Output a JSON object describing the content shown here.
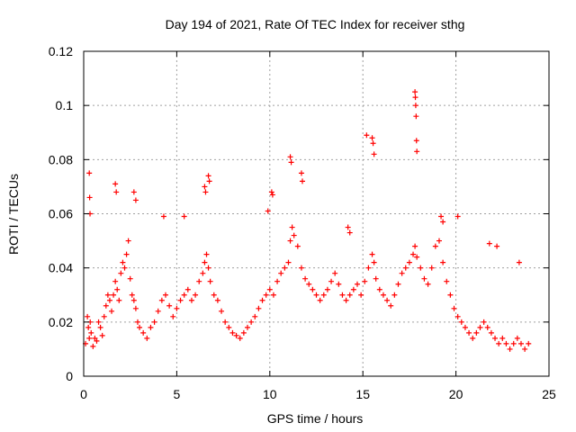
{
  "chart_data": {
    "type": "scatter",
    "title": "Day 194 of 2021, Rate Of TEC Index for receiver sthg",
    "xlabel": "GPS time / hours",
    "ylabel": "ROTI / TECUs",
    "xlim": [
      0,
      25
    ],
    "ylim": [
      0,
      0.12
    ],
    "xticks": [
      0,
      5,
      10,
      15,
      20,
      25
    ],
    "xtick_labels": [
      "0",
      "5",
      "10",
      "15",
      "20",
      "25"
    ],
    "yticks": [
      0,
      0.02,
      0.04,
      0.06,
      0.08,
      0.1,
      0.12
    ],
    "ytick_labels": [
      "0",
      "0.02",
      "0.04",
      "0.06",
      "0.08",
      "0.1",
      "0.12"
    ],
    "grid": true,
    "marker": "+",
    "series": [
      {
        "name": "ROTI",
        "color": "#ff0000",
        "x": [
          0.1,
          0.2,
          0.25,
          0.3,
          0.35,
          0.4,
          0.5,
          0.6,
          0.7,
          0.8,
          0.9,
          1.0,
          1.1,
          1.2,
          1.3,
          1.4,
          1.5,
          1.6,
          1.7,
          1.8,
          1.9,
          2.0,
          2.1,
          2.2,
          2.3,
          2.4,
          2.5,
          2.6,
          2.7,
          2.8,
          2.9,
          3.0,
          3.2,
          3.4,
          3.6,
          3.8,
          4.0,
          4.2,
          4.4,
          4.6,
          4.8,
          5.0,
          5.2,
          5.4,
          5.6,
          5.8,
          6.0,
          6.2,
          6.4,
          6.5,
          6.6,
          6.7,
          6.8,
          7.0,
          7.2,
          7.4,
          7.6,
          7.8,
          8.0,
          8.2,
          8.4,
          8.6,
          8.8,
          9.0,
          9.2,
          9.4,
          9.6,
          9.8,
          10.0,
          10.2,
          10.4,
          10.6,
          10.8,
          11.0,
          11.1,
          11.2,
          11.3,
          11.5,
          11.7,
          11.9,
          12.1,
          12.3,
          12.5,
          12.7,
          12.9,
          13.1,
          13.3,
          13.5,
          13.7,
          13.9,
          14.1,
          14.3,
          14.5,
          14.7,
          14.9,
          15.1,
          15.3,
          15.5,
          15.6,
          15.7,
          15.9,
          16.1,
          16.3,
          16.5,
          16.7,
          16.9,
          17.1,
          17.3,
          17.5,
          17.7,
          17.8,
          17.9,
          18.1,
          18.3,
          18.5,
          18.7,
          18.9,
          19.1,
          19.3,
          19.5,
          19.7,
          19.9,
          20.1,
          20.3,
          20.5,
          20.7,
          20.9,
          21.1,
          21.3,
          21.5,
          21.7,
          21.9,
          22.1,
          22.3,
          22.5,
          22.7,
          22.9,
          23.1,
          23.3,
          23.5,
          23.7,
          23.9,
          0.3,
          0.32,
          0.34,
          1.7,
          1.75,
          2.7,
          2.8,
          4.3,
          5.4,
          6.5,
          6.55,
          6.7,
          6.75,
          9.9,
          10.1,
          10.15,
          11.1,
          11.15,
          11.7,
          11.75,
          14.2,
          14.3,
          15.2,
          15.5,
          15.55,
          15.6,
          17.8,
          17.82,
          17.84,
          17.86,
          17.88,
          17.9,
          19.2,
          19.3,
          20.1,
          21.8,
          22.2,
          23.4
        ],
        "y": [
          0.012,
          0.022,
          0.018,
          0.014,
          0.02,
          0.016,
          0.011,
          0.014,
          0.013,
          0.02,
          0.018,
          0.015,
          0.022,
          0.026,
          0.03,
          0.028,
          0.024,
          0.03,
          0.035,
          0.032,
          0.028,
          0.038,
          0.042,
          0.04,
          0.045,
          0.05,
          0.036,
          0.03,
          0.028,
          0.025,
          0.02,
          0.018,
          0.016,
          0.014,
          0.018,
          0.02,
          0.024,
          0.028,
          0.03,
          0.026,
          0.022,
          0.025,
          0.028,
          0.03,
          0.032,
          0.028,
          0.03,
          0.035,
          0.038,
          0.042,
          0.045,
          0.04,
          0.035,
          0.03,
          0.028,
          0.024,
          0.02,
          0.018,
          0.016,
          0.015,
          0.014,
          0.016,
          0.018,
          0.02,
          0.022,
          0.025,
          0.028,
          0.03,
          0.032,
          0.03,
          0.035,
          0.038,
          0.04,
          0.042,
          0.05,
          0.055,
          0.052,
          0.048,
          0.04,
          0.036,
          0.034,
          0.032,
          0.03,
          0.028,
          0.03,
          0.032,
          0.035,
          0.038,
          0.034,
          0.03,
          0.028,
          0.03,
          0.032,
          0.034,
          0.03,
          0.035,
          0.04,
          0.045,
          0.042,
          0.036,
          0.032,
          0.03,
          0.028,
          0.026,
          0.03,
          0.034,
          0.038,
          0.04,
          0.042,
          0.045,
          0.048,
          0.044,
          0.04,
          0.036,
          0.034,
          0.04,
          0.048,
          0.05,
          0.042,
          0.035,
          0.03,
          0.025,
          0.022,
          0.02,
          0.018,
          0.016,
          0.014,
          0.016,
          0.018,
          0.02,
          0.018,
          0.016,
          0.014,
          0.012,
          0.014,
          0.012,
          0.01,
          0.012,
          0.014,
          0.012,
          0.01,
          0.012,
          0.075,
          0.066,
          0.06,
          0.071,
          0.068,
          0.068,
          0.065,
          0.059,
          0.059,
          0.07,
          0.068,
          0.074,
          0.072,
          0.061,
          0.068,
          0.067,
          0.081,
          0.079,
          0.075,
          0.072,
          0.055,
          0.053,
          0.089,
          0.088,
          0.086,
          0.082,
          0.105,
          0.103,
          0.1,
          0.096,
          0.087,
          0.083,
          0.059,
          0.057,
          0.059,
          0.049,
          0.048,
          0.042
        ]
      }
    ]
  }
}
